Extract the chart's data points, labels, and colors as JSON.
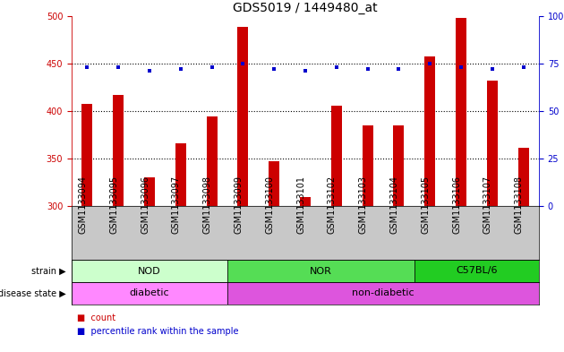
{
  "title": "GDS5019 / 1449480_at",
  "samples": [
    "GSM1133094",
    "GSM1133095",
    "GSM1133096",
    "GSM1133097",
    "GSM1133098",
    "GSM1133099",
    "GSM1133100",
    "GSM1133101",
    "GSM1133102",
    "GSM1133103",
    "GSM1133104",
    "GSM1133105",
    "GSM1133106",
    "GSM1133107",
    "GSM1133108"
  ],
  "counts": [
    408,
    417,
    330,
    366,
    394,
    489,
    347,
    309,
    406,
    385,
    385,
    458,
    498,
    432,
    361
  ],
  "percentiles": [
    73,
    73,
    71,
    72,
    73,
    75,
    72,
    71,
    73,
    72,
    72,
    75,
    73,
    72,
    73
  ],
  "ylim_left": [
    300,
    500
  ],
  "ylim_right": [
    0,
    100
  ],
  "yticks_left": [
    300,
    350,
    400,
    450,
    500
  ],
  "yticks_right": [
    0,
    25,
    50,
    75,
    100
  ],
  "bar_color": "#cc0000",
  "dot_color": "#0000cc",
  "strain_groups": [
    {
      "label": "NOD",
      "start": 0,
      "end": 5,
      "color": "#ccffcc"
    },
    {
      "label": "NOR",
      "start": 5,
      "end": 11,
      "color": "#55dd55"
    },
    {
      "label": "C57BL/6",
      "start": 11,
      "end": 15,
      "color": "#22cc22"
    }
  ],
  "disease_groups": [
    {
      "label": "diabetic",
      "start": 0,
      "end": 5,
      "color": "#ff88ff"
    },
    {
      "label": "non-diabetic",
      "start": 5,
      "end": 15,
      "color": "#dd55dd"
    }
  ],
  "strain_label": "strain",
  "disease_label": "disease state",
  "legend_count": "count",
  "legend_percentile": "percentile rank within the sample",
  "bg_xtick": "#c8c8c8",
  "axis_color_left": "#cc0000",
  "axis_color_right": "#0000cc",
  "title_fontsize": 10,
  "tick_fontsize": 7,
  "label_fontsize": 7,
  "group_fontsize": 8
}
